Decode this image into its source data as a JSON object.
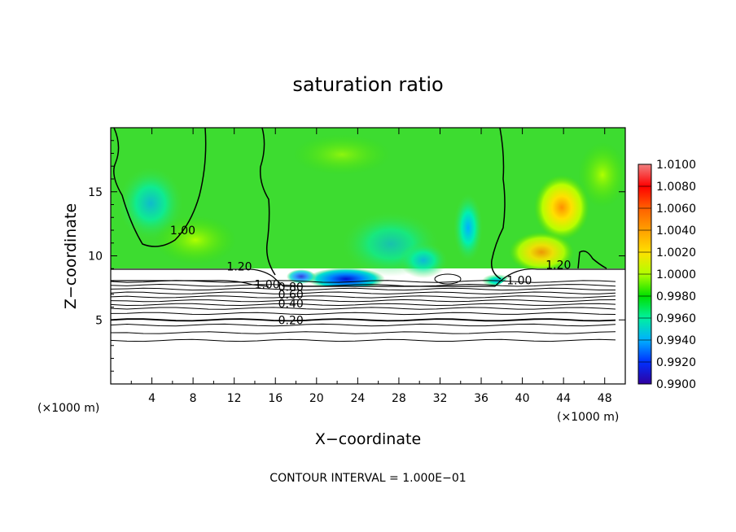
{
  "chart_data": {
    "type": "heatmap",
    "title": "saturation ratio",
    "xlabel": "X−coordinate",
    "ylabel": "Z−coordinate",
    "x_unit_left": "(×1000 m)",
    "x_unit_right": "(×1000 m)",
    "xlim": [
      0,
      50
    ],
    "ylim": [
      0,
      20
    ],
    "x_ticks": [
      4,
      8,
      12,
      16,
      20,
      24,
      28,
      32,
      36,
      40,
      44,
      48
    ],
    "y_ticks": [
      5,
      10,
      15
    ],
    "footer": "CONTOUR INTERVAL = 1.000E−01",
    "colorbar": {
      "labels": [
        "1.0100",
        "1.0080",
        "1.0060",
        "1.0040",
        "1.0020",
        "1.0000",
        "0.9980",
        "0.9960",
        "0.9940",
        "0.9920",
        "0.9900"
      ],
      "colors": [
        "#f08080",
        "#ff0000",
        "#ff6000",
        "#ffa000",
        "#ffe000",
        "#b0ff00",
        "#00e000",
        "#00f0a0",
        "#00b0ff",
        "#0030ff",
        "#3000a0"
      ]
    },
    "contour_labels": [
      {
        "text": "1.00",
        "x": 7,
        "y": 11.8
      },
      {
        "text": "1.20",
        "x": 12.5,
        "y": 9.0
      },
      {
        "text": "1.00",
        "x": 15.2,
        "y": 7.6
      },
      {
        "text": "0.80",
        "x": 17.5,
        "y": 7.4
      },
      {
        "text": "0.60",
        "x": 17.5,
        "y": 6.8
      },
      {
        "text": "0.40",
        "x": 17.5,
        "y": 6.1
      },
      {
        "text": "0.20",
        "x": 17.5,
        "y": 4.8
      },
      {
        "text": "1.00",
        "x": 39.7,
        "y": 7.9
      },
      {
        "text": "1.20",
        "x": 43.5,
        "y": 9.1
      }
    ],
    "stable_layer_contours": [
      8.0,
      7.7,
      7.4,
      7.1,
      6.8,
      6.5,
      6.2,
      5.9,
      5.5,
      5.0,
      4.6,
      4.0,
      3.4
    ],
    "saturated_layer_top": 9.0
  }
}
